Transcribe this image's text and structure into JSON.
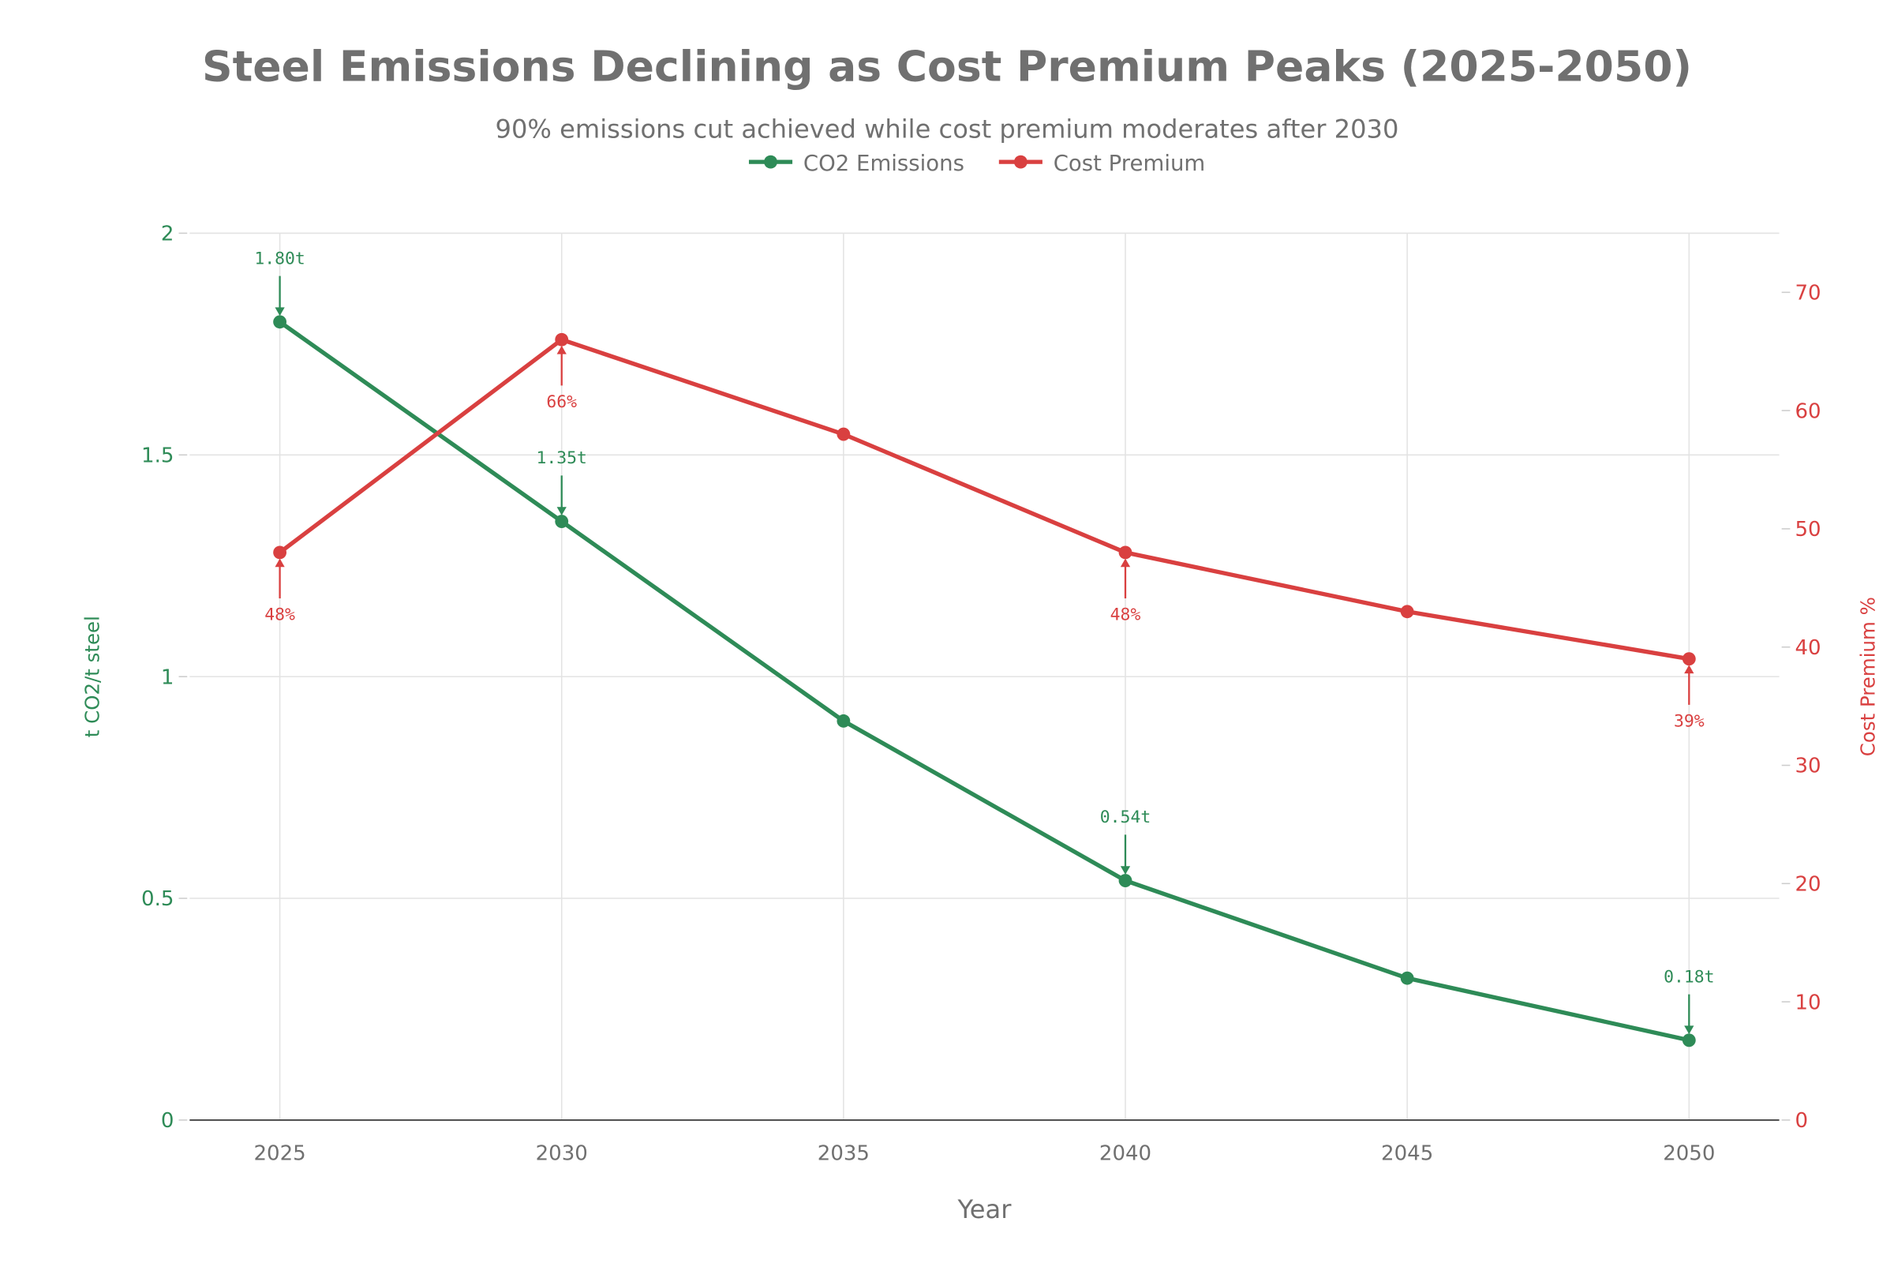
{
  "chart_data": {
    "type": "line",
    "title": "Steel Emissions Declining as Cost Premium Peaks (2025-2050)",
    "subtitle": "90% emissions cut achieved while cost premium moderates after 2030",
    "xlabel": "Year",
    "ylabel_left": "t CO2/t steel",
    "ylabel_right": "Cost Premium %",
    "x": [
      2025,
      2030,
      2035,
      2040,
      2045,
      2050
    ],
    "xlim": [
      2023.4,
      2051.6
    ],
    "ylim_left": [
      0,
      2
    ],
    "ylim_right": [
      0,
      75
    ],
    "xticks": [
      "2025",
      "2030",
      "2035",
      "2040",
      "2045",
      "2050"
    ],
    "yticks_left": [
      "0",
      "0.5",
      "1",
      "1.5",
      "2"
    ],
    "yticks_right": [
      "0",
      "10",
      "20",
      "30",
      "40",
      "50",
      "60",
      "70"
    ],
    "grid": true,
    "legend_position": "top-center",
    "series": [
      {
        "name": "CO2 Emissions",
        "axis": "left",
        "color": "#2e8b57",
        "values": [
          1.8,
          1.35,
          0.9,
          0.54,
          0.32,
          0.18
        ],
        "annotations": [
          {
            "x": 2025,
            "text": "1.80t"
          },
          {
            "x": 2030,
            "text": "1.35t"
          },
          {
            "x": 2040,
            "text": "0.54t"
          },
          {
            "x": 2050,
            "text": "0.18t"
          }
        ]
      },
      {
        "name": "Cost Premium",
        "axis": "right",
        "color": "#d94040",
        "values": [
          48,
          66,
          58,
          48,
          43,
          39
        ],
        "annotations": [
          {
            "x": 2025,
            "text": "48%"
          },
          {
            "x": 2030,
            "text": "66%"
          },
          {
            "x": 2040,
            "text": "48%"
          },
          {
            "x": 2050,
            "text": "39%"
          }
        ]
      }
    ]
  }
}
